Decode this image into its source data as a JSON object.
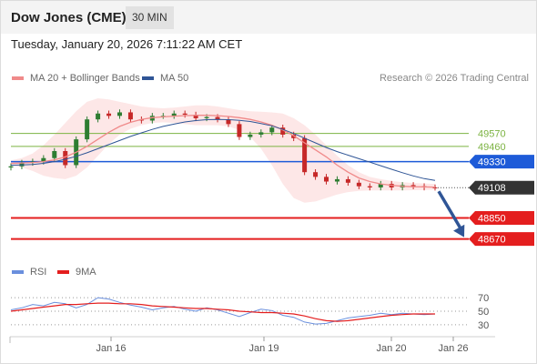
{
  "header": {
    "title": "Dow Jones (CME)",
    "timeframe": "30 MIN",
    "datetime": "Tuesday, January 20, 2026 7:11:22 AM CET"
  },
  "legend": {
    "ma20": "MA 20 + Bollinger Bands",
    "ma50": "MA 50",
    "research": "Research © 2026 Trading Central",
    "rsi": "RSI",
    "ma9": "9MA"
  },
  "colors": {
    "ma20": "#f08a8a",
    "ma50": "#2f5596",
    "band": "#fde3e3",
    "candle_up": "#2e7d32",
    "candle_down": "#c62828",
    "resistance": "#7cb342",
    "pivot": "#1e5bd8",
    "support": "#e41e1e",
    "last": "#333333",
    "arrow": "#2f5596",
    "rsi_line": "#6a8fdd",
    "rsi_ma": "#e41e1e"
  },
  "chart_data": [
    {
      "type": "line",
      "title": "Dow Jones (CME)",
      "timeframe": "30 MIN",
      "xlabel": "",
      "ylabel": "",
      "x_tick_labels": [
        "Jan 16",
        "Jan 19",
        "Jan 20",
        "Jan 26"
      ],
      "ylim": [
        48520,
        49870
      ],
      "grid": false,
      "legend_position": "top-left",
      "series": [
        {
          "name": "MA 20 + Bollinger Bands",
          "style": "line-with-band",
          "values": [
            49315,
            49318,
            49322,
            49330,
            49345,
            49370,
            49410,
            49460,
            49520,
            49580,
            49630,
            49665,
            49690,
            49705,
            49712,
            49718,
            49722,
            49725,
            49725,
            49722,
            49715,
            49705,
            49690,
            49668,
            49640,
            49600,
            49550,
            49490,
            49430,
            49370,
            49300,
            49240,
            49190,
            49160,
            49140,
            49128,
            49120,
            49116,
            49114,
            49112
          ],
          "band_upper": [
            49340,
            49360,
            49400,
            49470,
            49560,
            49660,
            49760,
            49840,
            49870,
            49860,
            49840,
            49820,
            49800,
            49790,
            49785,
            49790,
            49800,
            49810,
            49810,
            49800,
            49785,
            49770,
            49760,
            49755,
            49750,
            49740,
            49700,
            49640,
            49560,
            49470,
            49380,
            49300,
            49240,
            49200,
            49180,
            49165,
            49155,
            49148,
            49144,
            49140
          ],
          "band_lower": [
            49300,
            49280,
            49250,
            49210,
            49190,
            49180,
            49210,
            49280,
            49380,
            49480,
            49560,
            49610,
            49640,
            49660,
            49665,
            49660,
            49650,
            49640,
            49640,
            49640,
            49630,
            49600,
            49540,
            49440,
            49300,
            49140,
            49020,
            48980,
            48990,
            49020,
            49050,
            49070,
            49080,
            49085,
            49085,
            49085,
            49085,
            49086,
            49088,
            49090
          ]
        },
        {
          "name": "MA 50",
          "style": "line",
          "values": [
            49300,
            49302,
            49306,
            49315,
            49330,
            49350,
            49375,
            49405,
            49440,
            49475,
            49510,
            49545,
            49575,
            49605,
            49630,
            49650,
            49668,
            49680,
            49688,
            49690,
            49688,
            49682,
            49672,
            49655,
            49635,
            49605,
            49570,
            49530,
            49490,
            49450,
            49415,
            49385,
            49355,
            49325,
            49295,
            49265,
            49235,
            49208,
            49185,
            49170
          ]
        },
        {
          "name": "Close",
          "style": "candles",
          "values": [
            49290,
            49320,
            49330,
            49360,
            49420,
            49300,
            49520,
            49690,
            49740,
            49720,
            49750,
            49690,
            49680,
            49720,
            49720,
            49740,
            49730,
            49700,
            49710,
            49690,
            49650,
            49540,
            49560,
            49580,
            49620,
            49560,
            49530,
            49240,
            49200,
            49160,
            49180,
            49150,
            49120,
            49110,
            49140,
            49110,
            49130,
            49120,
            49110,
            49108
          ]
        }
      ],
      "levels": [
        {
          "label": "49570",
          "value": 49570,
          "kind": "resistance"
        },
        {
          "label": "49460",
          "value": 49460,
          "kind": "resistance"
        },
        {
          "label": "49330",
          "value": 49330,
          "kind": "pivot"
        },
        {
          "label": "49108",
          "value": 49108,
          "kind": "last"
        },
        {
          "label": "48850",
          "value": 48850,
          "kind": "support"
        },
        {
          "label": "48670",
          "value": 48670,
          "kind": "support"
        }
      ],
      "projection": {
        "from": 49108,
        "to": 48670
      }
    },
    {
      "type": "line",
      "title": "",
      "xlabel": "",
      "ylabel": "",
      "ylim": [
        15,
        85
      ],
      "y_tick_labels": [
        "70",
        "50",
        "30"
      ],
      "grid": true,
      "legend_position": "top-left",
      "series": [
        {
          "name": "RSI",
          "values": [
            52,
            55,
            60,
            58,
            63,
            61,
            55,
            60,
            70,
            68,
            63,
            59,
            56,
            52,
            55,
            57,
            53,
            50,
            55,
            52,
            47,
            42,
            48,
            53,
            51,
            44,
            41,
            34,
            31,
            32,
            36,
            40,
            42,
            44,
            47,
            45,
            47,
            46,
            45,
            46
          ]
        },
        {
          "name": "9MA",
          "values": [
            50,
            52,
            54,
            56,
            58,
            60,
            60,
            61,
            62,
            62,
            61,
            61,
            60,
            58,
            57,
            56,
            55,
            54,
            54,
            53,
            52,
            50,
            49,
            48,
            48,
            47,
            46,
            43,
            39,
            36,
            35,
            36,
            38,
            40,
            42,
            44,
            45,
            46,
            46,
            46
          ]
        }
      ]
    }
  ]
}
